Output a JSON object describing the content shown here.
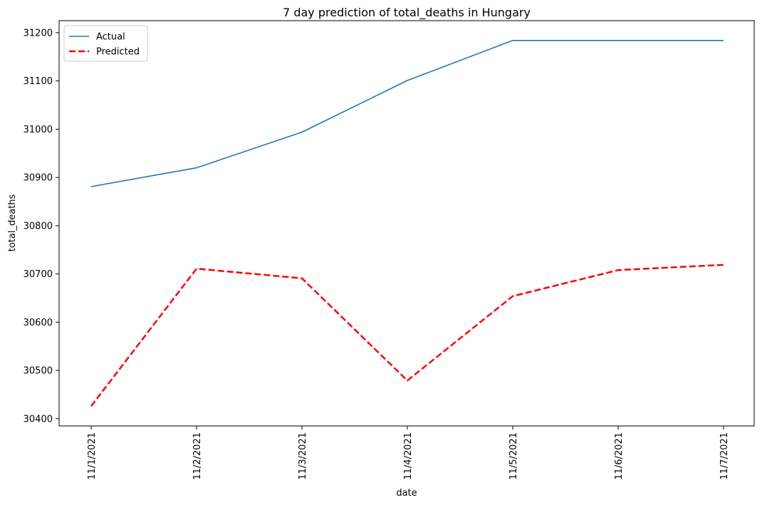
{
  "chart_data": {
    "type": "line",
    "title": "7 day prediction of total_deaths in Hungary",
    "xlabel": "date",
    "ylabel": "total_deaths",
    "x": [
      "11/1/2021",
      "11/2/2021",
      "11/3/2021",
      "11/4/2021",
      "11/5/2021",
      "11/6/2021",
      "11/7/2021"
    ],
    "ylim": [
      30385,
      31225
    ],
    "yticks": [
      30400,
      30500,
      30600,
      30700,
      30800,
      30900,
      31000,
      31100,
      31200
    ],
    "grid": false,
    "legend_position": "top-left",
    "series": [
      {
        "name": "Actual",
        "style": "solid",
        "color": "#1f77b4",
        "values": [
          30881,
          30920,
          30994,
          31101,
          31184,
          31184,
          31184
        ]
      },
      {
        "name": "Predicted",
        "style": "dashed",
        "color": "#ff0000",
        "values": [
          30426,
          30711,
          30691,
          30479,
          30654,
          30708,
          30719
        ]
      }
    ]
  }
}
